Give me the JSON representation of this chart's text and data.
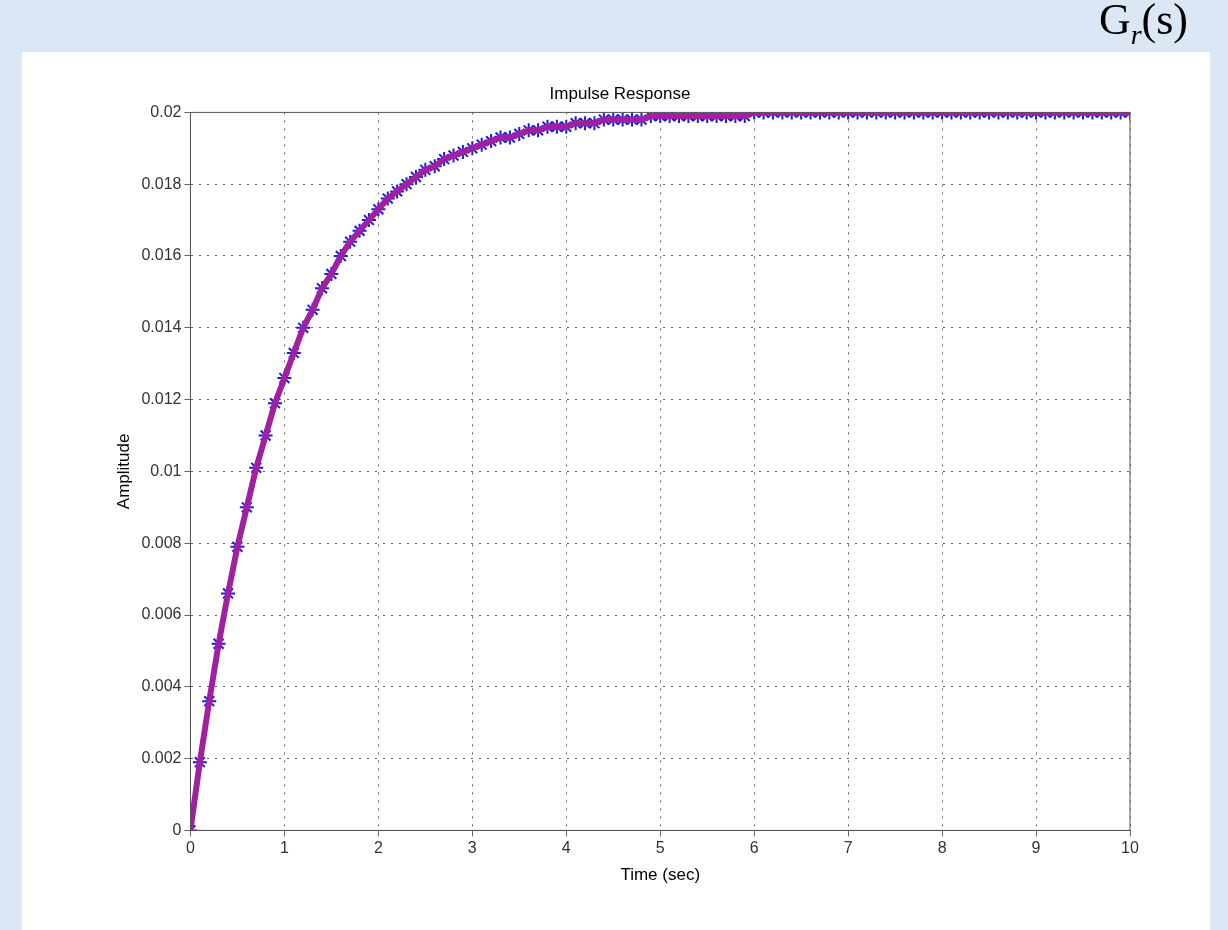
{
  "chart_data": {
    "type": "line",
    "title": "Impulse Response",
    "xlabel": "Time (sec)",
    "ylabel": "Amplitude",
    "x": [
      0,
      0.1,
      0.2,
      0.3,
      0.4,
      0.5,
      0.6,
      0.7,
      0.8,
      0.9,
      1,
      1.1,
      1.2,
      1.3,
      1.4,
      1.5,
      1.6,
      1.7,
      1.8,
      1.9,
      2,
      2.1,
      2.2,
      2.3,
      2.4,
      2.5,
      2.6,
      2.7,
      2.8,
      2.9,
      3,
      3.1,
      3.2,
      3.3,
      3.4,
      3.5,
      3.6,
      3.7,
      3.8,
      3.9,
      4,
      4.1,
      4.2,
      4.3,
      4.4,
      4.5,
      4.6,
      4.7,
      4.8,
      4.9,
      5,
      5.1,
      5.2,
      5.3,
      5.4,
      5.5,
      5.6,
      5.7,
      5.8,
      5.9,
      6,
      6.1,
      6.2,
      6.3,
      6.4,
      6.5,
      6.6,
      6.7,
      6.8,
      6.9,
      7,
      7.1,
      7.2,
      7.3,
      7.4,
      7.5,
      7.6,
      7.7,
      7.8,
      7.9,
      8,
      8.1,
      8.2,
      8.3,
      8.4,
      8.5,
      8.6,
      8.7,
      8.8,
      8.9,
      9,
      9.1,
      9.2,
      9.3,
      9.4,
      9.5,
      9.6,
      9.7,
      9.8,
      9.9,
      10
    ],
    "series": [
      {
        "type": "line",
        "color": "#a020a0",
        "marker": "none",
        "values": [
          0,
          0.0019,
          0.0036,
          0.0052,
          0.0066,
          0.0079,
          0.009,
          0.0101,
          0.011,
          0.0119,
          0.0126,
          0.0133,
          0.014,
          0.0145,
          0.0151,
          0.0155,
          0.016,
          0.0164,
          0.0167,
          0.017,
          0.0173,
          0.0176,
          0.0178,
          0.018,
          0.0182,
          0.0184,
          0.0185,
          0.0187,
          0.0188,
          0.0189,
          0.019,
          0.0191,
          0.0192,
          0.0193,
          0.0193,
          0.0194,
          0.0195,
          0.0195,
          0.0196,
          0.0196,
          0.0196,
          0.0197,
          0.0197,
          0.0197,
          0.0198,
          0.0198,
          0.0198,
          0.0198,
          0.0198,
          0.0199,
          0.0199,
          0.0199,
          0.0199,
          0.0199,
          0.0199,
          0.0199,
          0.0199,
          0.0199,
          0.0199,
          0.0199,
          0.02,
          0.02,
          0.02,
          0.02,
          0.02,
          0.02,
          0.02,
          0.02,
          0.02,
          0.02,
          0.02,
          0.02,
          0.02,
          0.02,
          0.02,
          0.02,
          0.02,
          0.02,
          0.02,
          0.02,
          0.02,
          0.02,
          0.02,
          0.02,
          0.02,
          0.02,
          0.02,
          0.02,
          0.02,
          0.02,
          0.02,
          0.02,
          0.02,
          0.02,
          0.02,
          0.02,
          0.02,
          0.02,
          0.02,
          0.02,
          0.02
        ]
      },
      {
        "type": "scatter",
        "color": "#1c1ce0",
        "marker": "cross",
        "values": [
          0,
          0.0019,
          0.0036,
          0.0052,
          0.0066,
          0.0079,
          0.009,
          0.0101,
          0.011,
          0.0119,
          0.0126,
          0.0133,
          0.014,
          0.0145,
          0.0151,
          0.0155,
          0.016,
          0.0164,
          0.0167,
          0.017,
          0.0173,
          0.0176,
          0.0178,
          0.018,
          0.0182,
          0.0184,
          0.0185,
          0.0187,
          0.0188,
          0.0189,
          0.019,
          0.0191,
          0.0192,
          0.0193,
          0.0193,
          0.0194,
          0.0195,
          0.0195,
          0.0196,
          0.0196,
          0.0196,
          0.0197,
          0.0197,
          0.0197,
          0.0198,
          0.0198,
          0.0198,
          0.0198,
          0.0198,
          0.0199,
          0.0199,
          0.0199,
          0.0199,
          0.0199,
          0.0199,
          0.0199,
          0.0199,
          0.0199,
          0.0199,
          0.0199,
          0.02,
          0.02,
          0.02,
          0.02,
          0.02,
          0.02,
          0.02,
          0.02,
          0.02,
          0.02,
          0.02,
          0.02,
          0.02,
          0.02,
          0.02,
          0.02,
          0.02,
          0.02,
          0.02,
          0.02,
          0.02,
          0.02,
          0.02,
          0.02,
          0.02,
          0.02,
          0.02,
          0.02,
          0.02,
          0.02,
          0.02,
          0.02,
          0.02,
          0.02,
          0.02,
          0.02,
          0.02,
          0.02,
          0.02,
          0.02,
          0.02
        ]
      }
    ],
    "xlim": [
      0,
      10
    ],
    "xticks": [
      0,
      1,
      2,
      3,
      4,
      5,
      6,
      7,
      8,
      9,
      10
    ],
    "ylim": [
      0,
      0.02
    ],
    "yticks": [
      0,
      0.002,
      0.004,
      0.006,
      0.008,
      0.01,
      0.012,
      0.014,
      0.016,
      0.018,
      0.02
    ],
    "grid": true,
    "legend": false,
    "annotations": [
      "G$_{r}$(s)"
    ]
  }
}
